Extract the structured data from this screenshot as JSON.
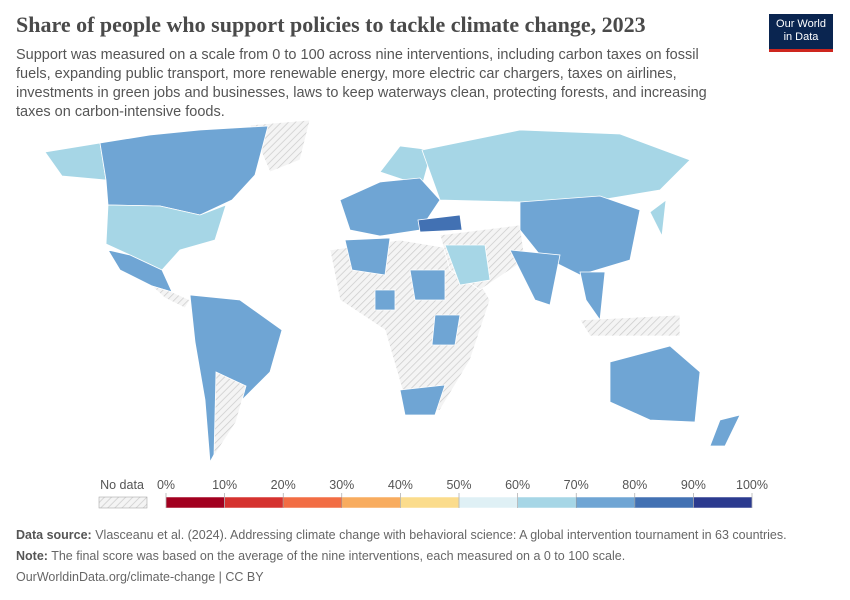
{
  "header": {
    "title": "Share of people who support policies to tackle climate change, 2023",
    "subtitle": "Support was measured on a scale from 0 to 100 across nine interventions, including carbon taxes on fossil fuels, expanding public transport, more renewable energy, more electric car chargers, taxes on airlines, investments in green jobs and businesses, laws to keep waterways clean, protecting forests, and increasing taxes on carbon-intensive foods.",
    "logo": [
      "Our World",
      "in Data"
    ]
  },
  "legend": {
    "no_data": "No data",
    "ticks": [
      {
        "value": 0,
        "label": "0%"
      },
      {
        "value": 10,
        "label": "10%"
      },
      {
        "value": 20,
        "label": "20%"
      },
      {
        "value": 30,
        "label": "30%"
      },
      {
        "value": 40,
        "label": "40%"
      },
      {
        "value": 50,
        "label": "50%"
      },
      {
        "value": 60,
        "label": "60%"
      },
      {
        "value": 70,
        "label": "70%"
      },
      {
        "value": 80,
        "label": "80%"
      },
      {
        "value": 90,
        "label": "90%"
      },
      {
        "value": 100,
        "label": "100%"
      }
    ],
    "colors": [
      "#a2001f",
      "#d5322f",
      "#f26d44",
      "#f8ac5f",
      "#fbdc8c",
      "#dff0f5",
      "#a6d6e6",
      "#6fa5d4",
      "#4271b3",
      "#2b3a8f"
    ]
  },
  "footer": {
    "source_label": "Data source:",
    "source": "Vlasceanu et al. (2024). Addressing climate change with behavioral science: A global intervention tournament in 63 countries.",
    "note_label": "Note:",
    "note": "The final score was based on the average of the nine interventions, each measured on a 0 to 100 scale.",
    "link": "OurWorldinData.org/climate-change | CC BY"
  }
}
